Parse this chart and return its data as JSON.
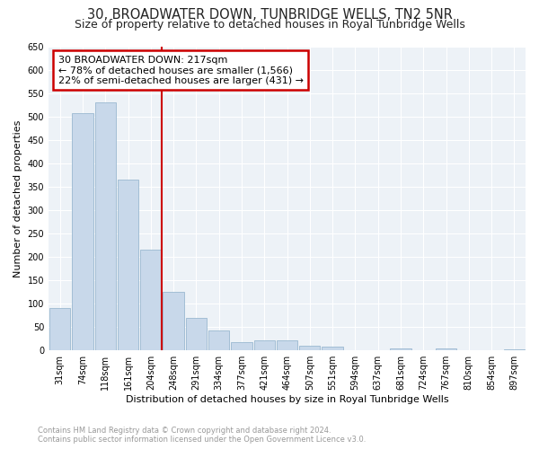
{
  "title1": "30, BROADWATER DOWN, TUNBRIDGE WELLS, TN2 5NR",
  "title2": "Size of property relative to detached houses in Royal Tunbridge Wells",
  "xlabel": "Distribution of detached houses by size in Royal Tunbridge Wells",
  "ylabel": "Number of detached properties",
  "categories": [
    "31sqm",
    "74sqm",
    "118sqm",
    "161sqm",
    "204sqm",
    "248sqm",
    "291sqm",
    "334sqm",
    "377sqm",
    "421sqm",
    "464sqm",
    "507sqm",
    "551sqm",
    "594sqm",
    "637sqm",
    "681sqm",
    "724sqm",
    "767sqm",
    "810sqm",
    "854sqm",
    "897sqm"
  ],
  "values": [
    90,
    507,
    530,
    365,
    215,
    125,
    70,
    42,
    18,
    22,
    22,
    10,
    8,
    0,
    0,
    5,
    0,
    5,
    0,
    0,
    3
  ],
  "bar_color": "#c8d8ea",
  "bar_edge_color": "#9ab8d0",
  "vline_x": 4.5,
  "annotation_text": "30 BROADWATER DOWN: 217sqm\n← 78% of detached houses are smaller (1,566)\n22% of semi-detached houses are larger (431) →",
  "annotation_box_color": "#ffffff",
  "annotation_box_edge": "#cc0000",
  "vline_color": "#cc0000",
  "ylim": [
    0,
    650
  ],
  "yticks": [
    0,
    50,
    100,
    150,
    200,
    250,
    300,
    350,
    400,
    450,
    500,
    550,
    600,
    650
  ],
  "footer_text": "Contains HM Land Registry data © Crown copyright and database right 2024.\nContains public sector information licensed under the Open Government Licence v3.0.",
  "fig_bg_color": "#ffffff",
  "plot_bg_color": "#edf2f7",
  "grid_color": "#ffffff",
  "title1_fontsize": 10.5,
  "title2_fontsize": 9,
  "xlabel_fontsize": 8,
  "ylabel_fontsize": 8,
  "tick_fontsize": 7,
  "annot_fontsize": 8,
  "footer_fontsize": 6
}
